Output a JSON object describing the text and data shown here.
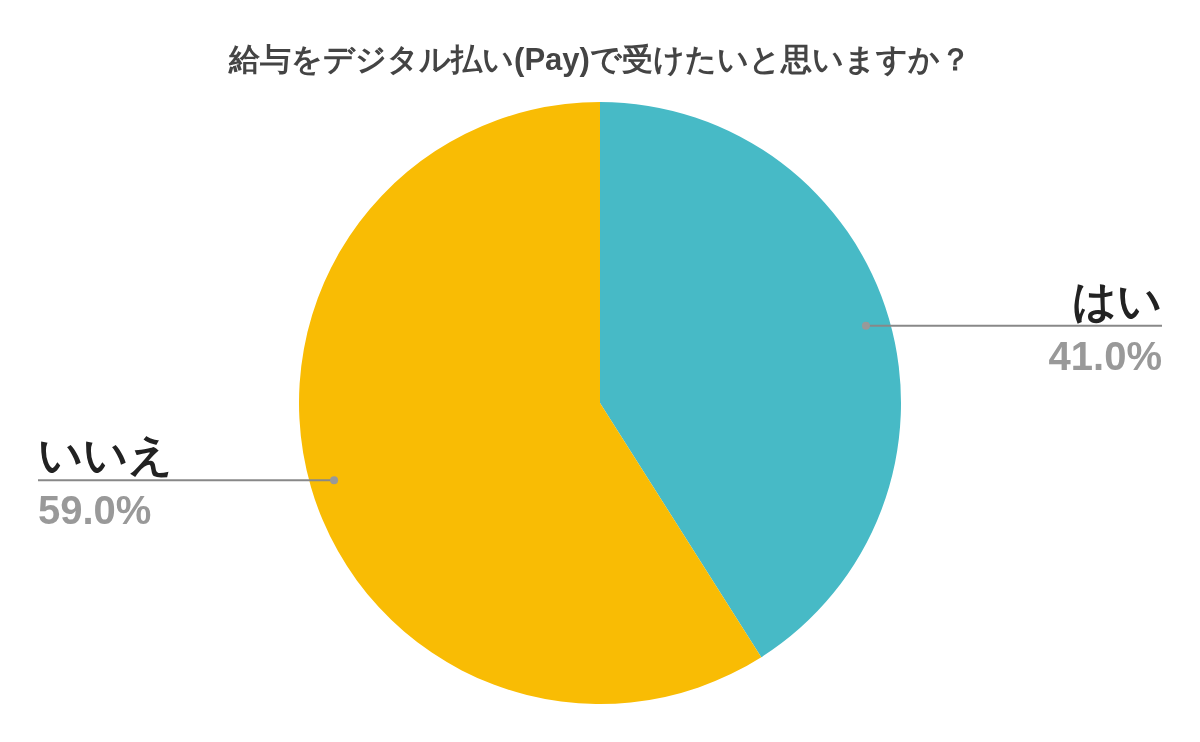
{
  "chart_data": {
    "type": "pie",
    "title": "給与をデジタル払い(Pay)で受けたいと思いますか？",
    "categories": [
      "はい",
      "いいえ"
    ],
    "values": [
      41.0,
      59.0
    ],
    "value_labels": [
      "41.0%",
      "59.0%"
    ],
    "colors": [
      "#47bac6",
      "#f9bc04"
    ]
  }
}
